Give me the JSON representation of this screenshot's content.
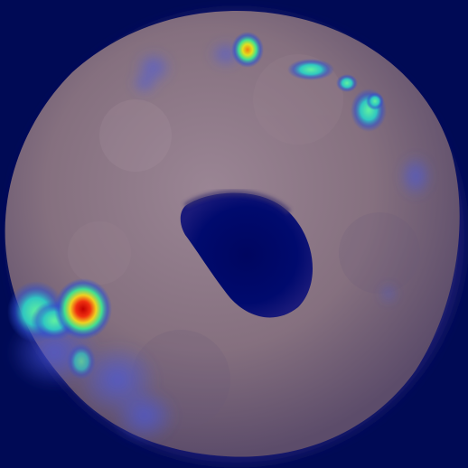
{
  "image": {
    "subject": "bagel",
    "overlay": "anomaly-heatmap",
    "colors": {
      "background": "#000a55",
      "bagel": "#8a7486",
      "bagel_shadow": "#5c4c6a",
      "hole": "#000a6e",
      "heat_low": "#3a48d8",
      "heat_mid": "#30e0a0",
      "heat_high": "#f0e020",
      "heat_peak": "#e01010"
    },
    "hotspots": [
      {
        "name": "left-edge-defect",
        "intensity": 1.0
      },
      {
        "name": "top-edge-defect",
        "intensity": 0.85
      },
      {
        "name": "top-right-edge-defect",
        "intensity": 0.55
      }
    ]
  }
}
